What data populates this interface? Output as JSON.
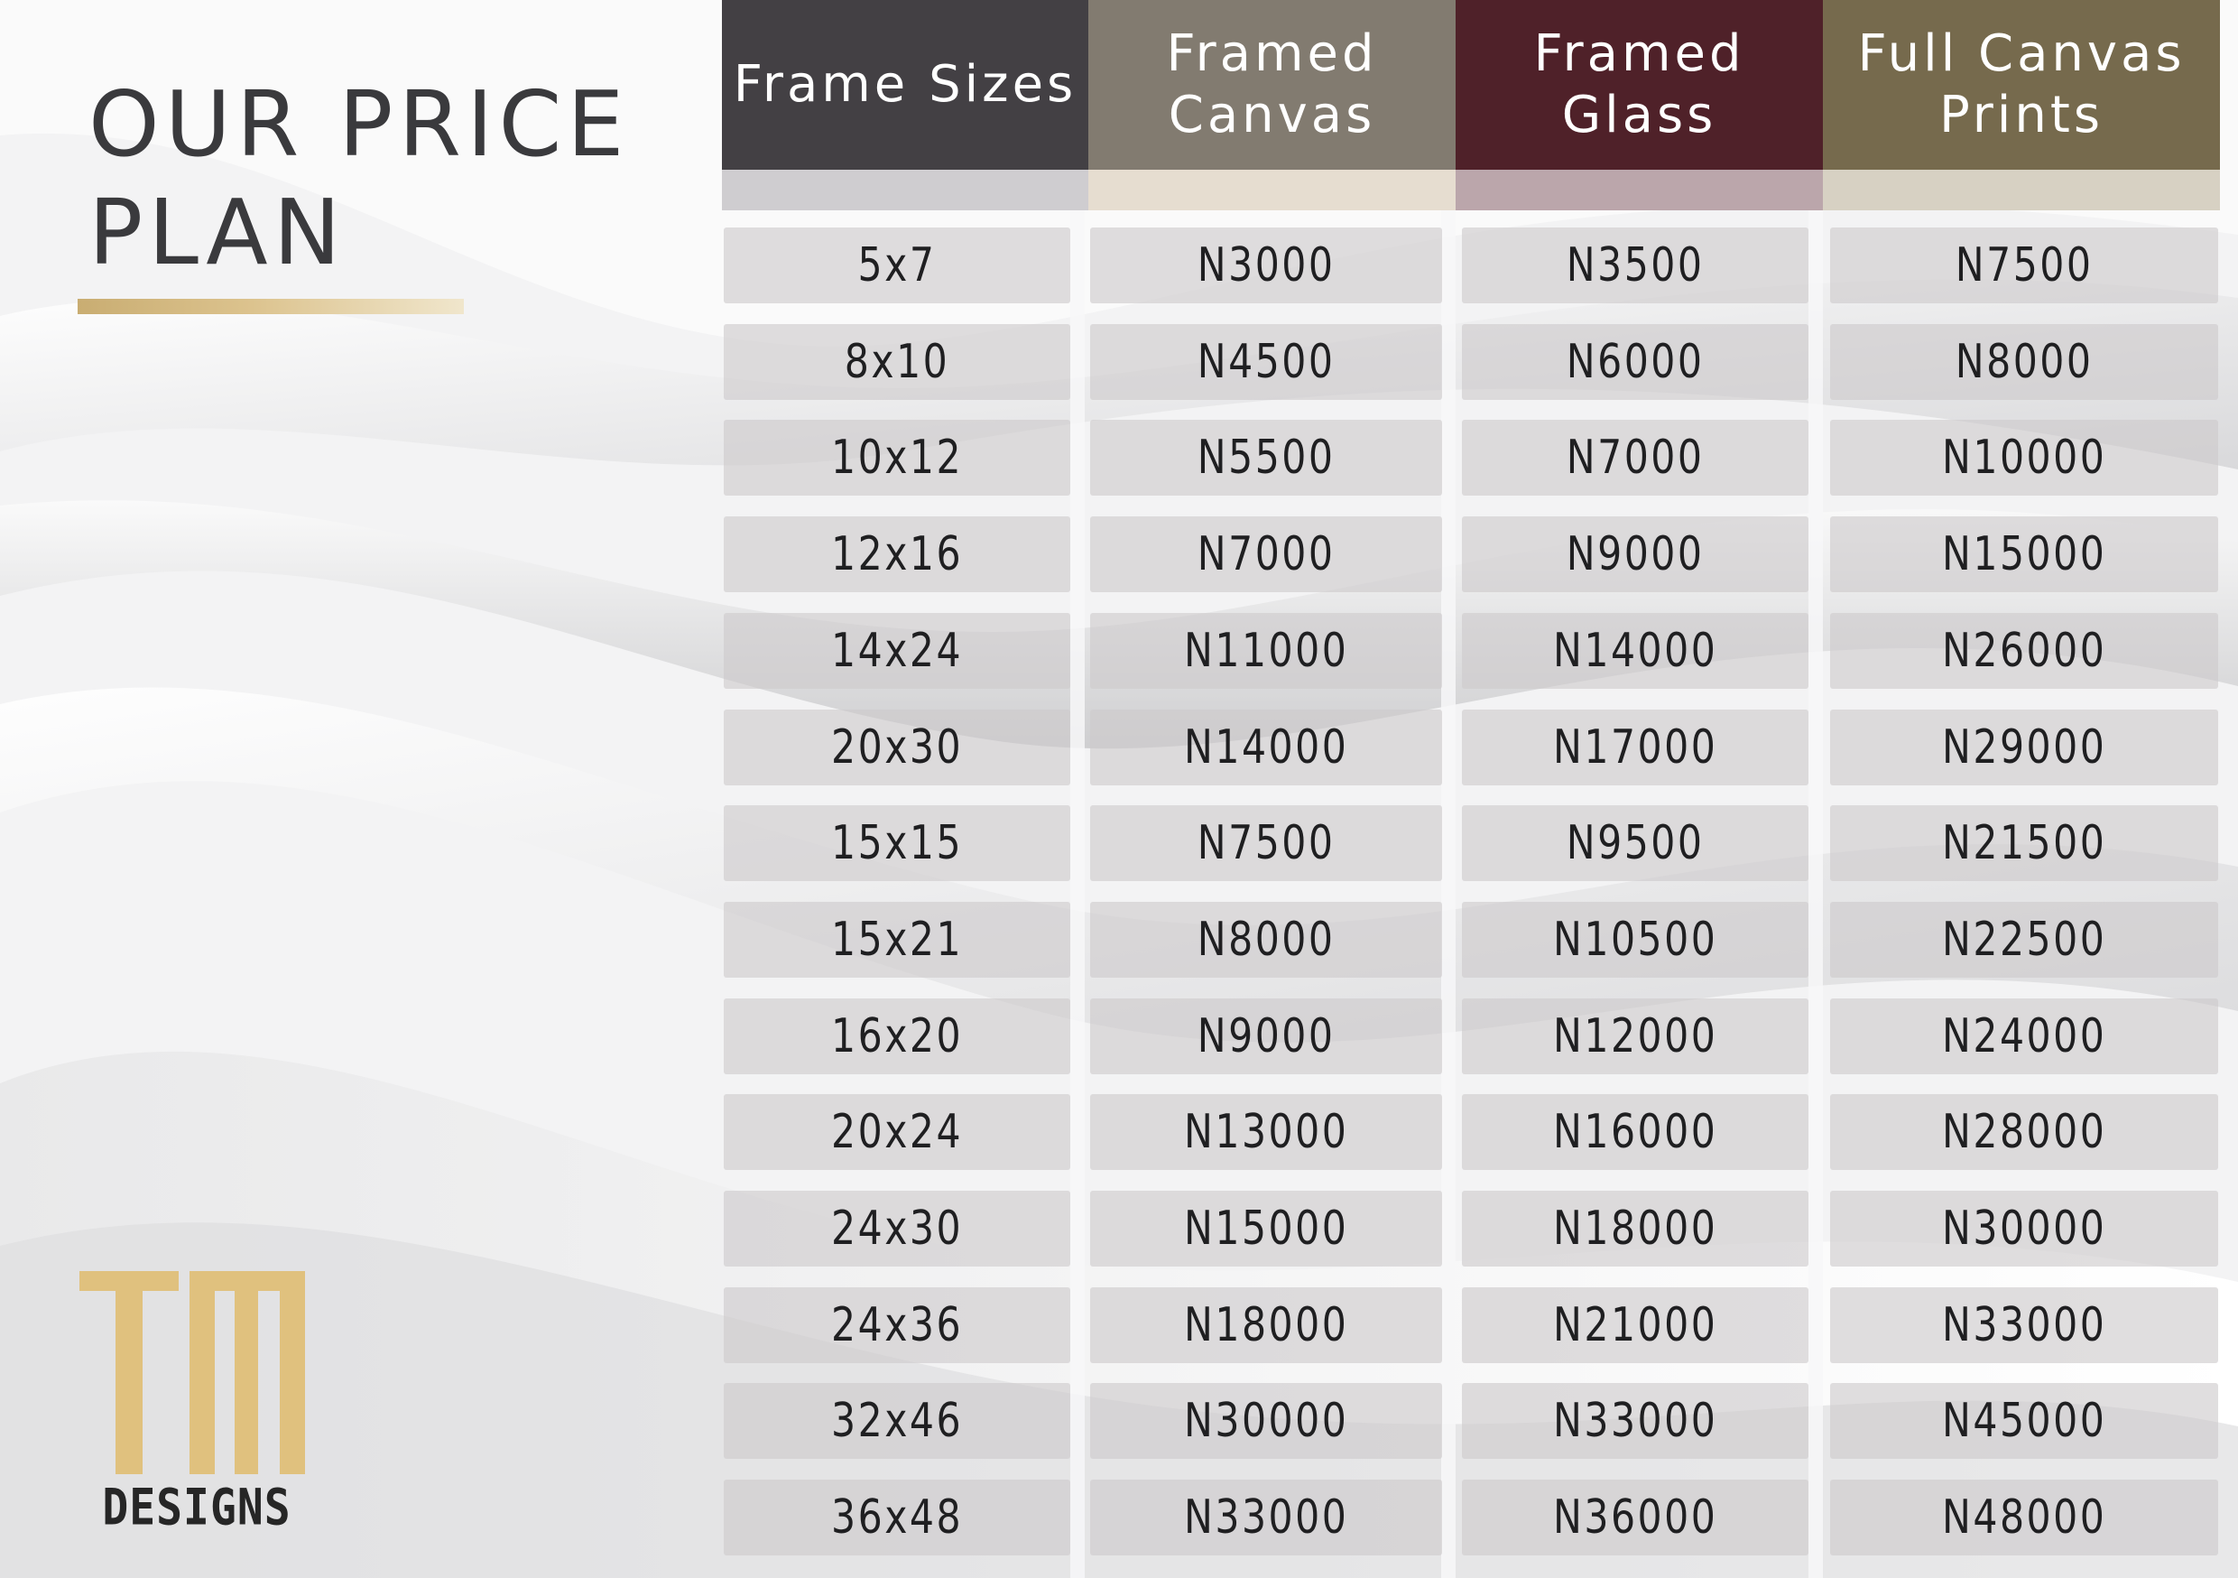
{
  "title_lines": [
    "OUR PRICE",
    "PLAN"
  ],
  "logo": {
    "letters": "TM",
    "word": "DESIGNS",
    "color": "#e0c17e"
  },
  "colors": {
    "header_sizes": "#434044",
    "header_canvas": "#827b70",
    "header_glass": "#4f2129",
    "header_prints": "#766a4d",
    "band_sizes": "#cfcdd0",
    "band_canvas": "#e6ddd0",
    "band_glass": "#bba6ab",
    "band_prints": "#d7d1c3",
    "gold": "#c9ad72"
  },
  "table": {
    "headers": [
      "Frame Sizes",
      "Framed Canvas",
      "Framed Glass",
      "Full Canvas Prints"
    ],
    "rows": [
      [
        "5x7",
        "N3000",
        "N3500",
        "N7500"
      ],
      [
        "8x10",
        "N4500",
        "N6000",
        "N8000"
      ],
      [
        "10x12",
        "N5500",
        "N7000",
        "N10000"
      ],
      [
        "12x16",
        "N7000",
        "N9000",
        "N15000"
      ],
      [
        "14x24",
        "N11000",
        "N14000",
        "N26000"
      ],
      [
        "20x30",
        "N14000",
        "N17000",
        "N29000"
      ],
      [
        "15x15",
        "N7500",
        "N9500",
        "N21500"
      ],
      [
        "15x21",
        "N8000",
        "N10500",
        "N22500"
      ],
      [
        "16x20",
        "N9000",
        "N12000",
        "N24000"
      ],
      [
        "20x24",
        "N13000",
        "N16000",
        "N28000"
      ],
      [
        "24x30",
        "N15000",
        "N18000",
        "N30000"
      ],
      [
        "24x36",
        "N18000",
        "N21000",
        "N33000"
      ],
      [
        "32x46",
        "N30000",
        "N33000",
        "N45000"
      ],
      [
        "36x48",
        "N33000",
        "N36000",
        "N48000"
      ]
    ]
  }
}
